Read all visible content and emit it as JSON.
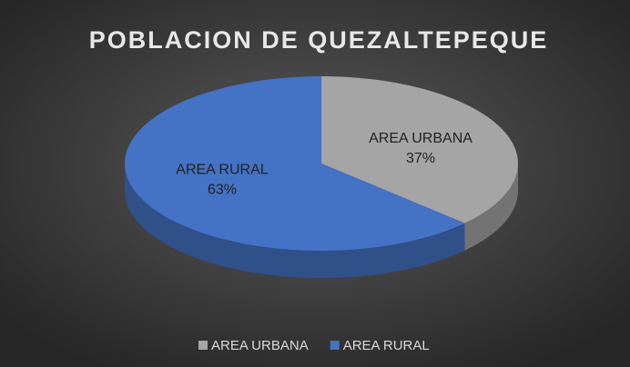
{
  "chart_data": {
    "type": "pie",
    "title": "POBLACION DE QUEZALTEPEQUE",
    "categories": [
      "AREA URBANA",
      "AREA RURAL"
    ],
    "values": [
      37,
      63
    ],
    "value_labels": [
      "37%",
      "63%"
    ],
    "colors": [
      "#a5a5a5",
      "#4472c4"
    ],
    "legend": "bottom"
  }
}
